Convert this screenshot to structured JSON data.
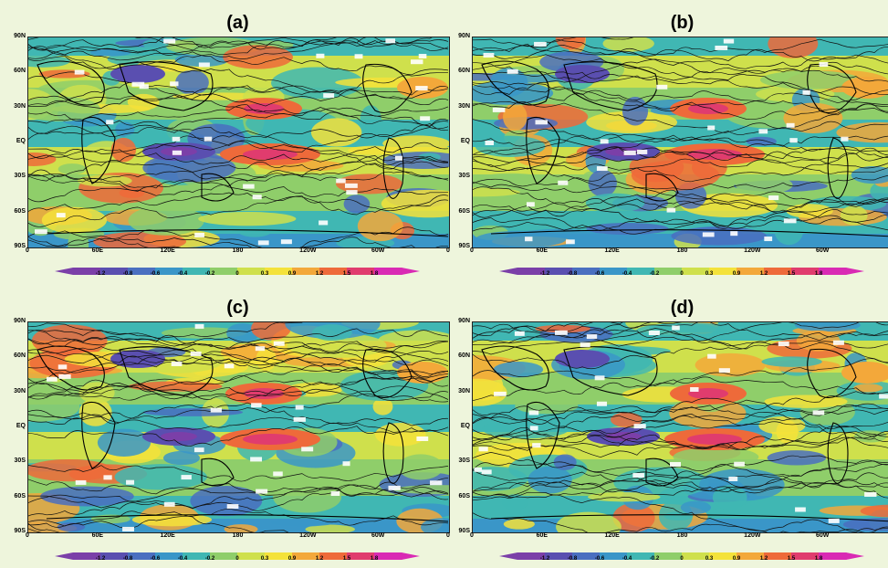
{
  "panels": [
    {
      "id": "a",
      "title": "(a)"
    },
    {
      "id": "b",
      "title": "(b)"
    },
    {
      "id": "c",
      "title": "(c)"
    },
    {
      "id": "d",
      "title": "(d)"
    }
  ],
  "lat_labels": [
    "90N",
    "60N",
    "30N",
    "EQ",
    "30S",
    "60S",
    "90S"
  ],
  "lon_labels": [
    "0",
    "60E",
    "120E",
    "180",
    "120W",
    "60W",
    "0"
  ],
  "colorbar": {
    "ticks": [
      "-1.2",
      "-0.8",
      "-0.6",
      "-0.4",
      "-0.2",
      "0",
      "0.3",
      "0.9",
      "1.2",
      "1.5",
      "1.8"
    ],
    "colors": [
      "#7b3fa8",
      "#5a4fb0",
      "#4a6fc0",
      "#3a96c8",
      "#40b7b3",
      "#8fce6a",
      "#cfe04c",
      "#f4e23a",
      "#f3a83a",
      "#ee6a3a",
      "#e03c6e",
      "#d92ab4"
    ]
  }
}
